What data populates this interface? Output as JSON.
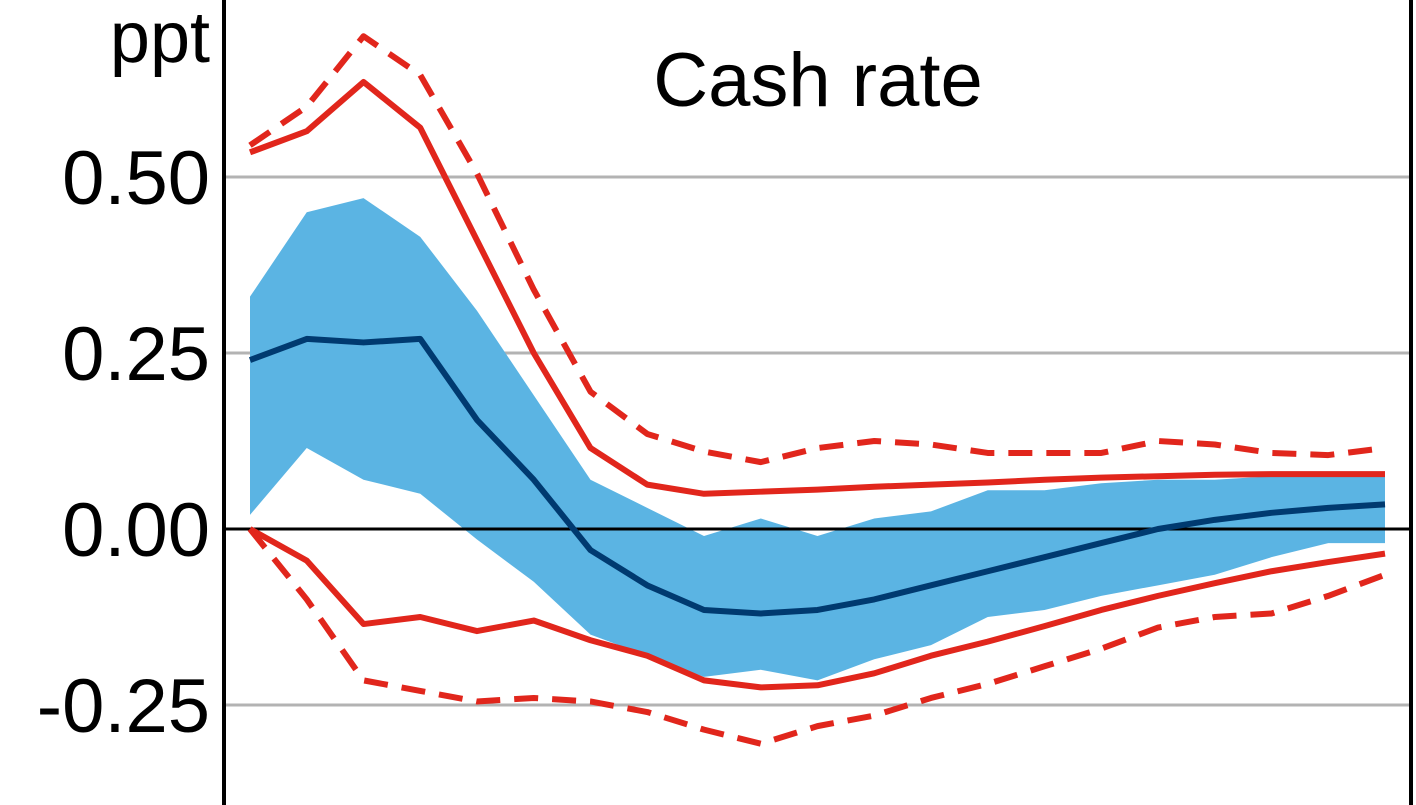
{
  "chart_data": {
    "type": "line",
    "title": "Cash rate",
    "ylabel": "ppt",
    "ylim": [
      -0.38,
      0.75
    ],
    "yticks": [
      -0.25,
      0.0,
      0.25,
      0.5
    ],
    "ytick_labels": [
      "-0.25",
      "0.00",
      "0.25",
      "0.50"
    ],
    "grid": true,
    "x": [
      0,
      1,
      2,
      3,
      4,
      5,
      6,
      7,
      8,
      9,
      10,
      11,
      12,
      13,
      14,
      15,
      16,
      17,
      18,
      19,
      20
    ],
    "series": [
      {
        "role": "median",
        "color": "#003a70",
        "values": [
          0.24,
          0.27,
          0.265,
          0.27,
          0.155,
          0.07,
          -0.03,
          -0.08,
          -0.115,
          -0.12,
          -0.115,
          -0.1,
          -0.08,
          -0.06,
          -0.04,
          -0.02,
          0.0,
          0.013,
          0.023,
          0.03,
          0.035
        ]
      },
      {
        "role": "band-upper",
        "color": "#5bb4e3",
        "values": [
          0.33,
          0.45,
          0.47,
          0.415,
          0.31,
          0.19,
          0.07,
          0.03,
          -0.01,
          0.015,
          -0.01,
          0.015,
          0.025,
          0.055,
          0.055,
          0.065,
          0.07,
          0.07,
          0.075,
          0.075,
          0.075
        ]
      },
      {
        "role": "band-lower",
        "color": "#5bb4e3",
        "values": [
          0.02,
          0.115,
          0.07,
          0.05,
          -0.015,
          -0.075,
          -0.15,
          -0.18,
          -0.21,
          -0.2,
          -0.215,
          -0.185,
          -0.165,
          -0.125,
          -0.115,
          -0.095,
          -0.08,
          -0.065,
          -0.04,
          -0.02,
          -0.02
        ]
      },
      {
        "role": "red-upper-solid",
        "color": "#e1261c",
        "values": [
          0.535,
          0.565,
          0.635,
          0.57,
          0.41,
          0.25,
          0.115,
          0.063,
          0.05,
          0.053,
          0.056,
          0.06,
          0.063,
          0.066,
          0.07,
          0.073,
          0.075,
          0.077,
          0.078,
          0.078,
          0.078
        ]
      },
      {
        "role": "red-upper-dashed",
        "color": "#e1261c",
        "values": [
          0.545,
          0.6,
          0.7,
          0.645,
          0.505,
          0.34,
          0.195,
          0.135,
          0.11,
          0.095,
          0.115,
          0.125,
          0.12,
          0.108,
          0.108,
          0.108,
          0.125,
          0.12,
          0.108,
          0.105,
          0.115
        ]
      },
      {
        "role": "red-lower-solid",
        "color": "#e1261c",
        "values": [
          0.0,
          -0.045,
          -0.135,
          -0.125,
          -0.145,
          -0.13,
          -0.158,
          -0.18,
          -0.215,
          -0.225,
          -0.222,
          -0.205,
          -0.18,
          -0.16,
          -0.138,
          -0.115,
          -0.095,
          -0.077,
          -0.06,
          -0.047,
          -0.035
        ]
      },
      {
        "role": "red-lower-dashed",
        "color": "#e1261c",
        "values": [
          0.0,
          -0.1,
          -0.215,
          -0.23,
          -0.245,
          -0.24,
          -0.245,
          -0.26,
          -0.285,
          -0.305,
          -0.28,
          -0.265,
          -0.24,
          -0.22,
          -0.195,
          -0.17,
          -0.14,
          -0.125,
          -0.12,
          -0.095,
          -0.065
        ]
      }
    ]
  }
}
